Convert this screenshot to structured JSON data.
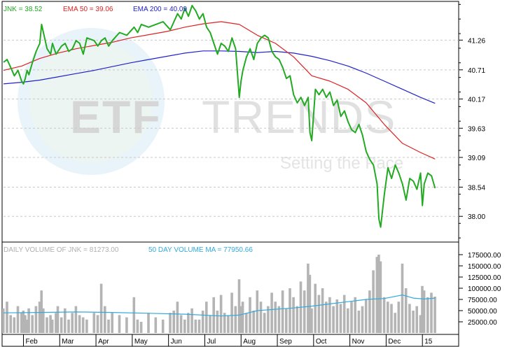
{
  "chart_data": [
    {
      "type": "line",
      "panel": "price",
      "legend": {
        "jnk": "JNK = 38.52",
        "ema50": "EMA 50 = 39.06",
        "ema200": "EMA 200 = 40.09"
      },
      "yticks": [
        "41.26",
        "40.71",
        "40.17",
        "39.63",
        "39.09",
        "38.54",
        "38.00"
      ],
      "ylim": [
        37.55,
        41.95
      ],
      "xlim": [
        0,
        12.55
      ],
      "grid": true,
      "colors": {
        "jnk": "#22aa22",
        "ema50": "#dd2222",
        "ema200": "#2222cc",
        "grid": "#c8c8c8"
      },
      "series": [
        {
          "name": "JNK = 38.52",
          "x": [
            0.0,
            0.1,
            0.2,
            0.3,
            0.4,
            0.5,
            0.55,
            0.6,
            0.65,
            0.7,
            0.8,
            0.9,
            1.0,
            1.05,
            1.1,
            1.2,
            1.3,
            1.35,
            1.45,
            1.5,
            1.6,
            1.7,
            1.8,
            1.9,
            2.0,
            2.1,
            2.2,
            2.3,
            2.5,
            2.6,
            2.7,
            2.8,
            2.9,
            3.0,
            3.2,
            3.4,
            3.6,
            3.7,
            3.8,
            4.0,
            4.2,
            4.4,
            4.6,
            4.7,
            4.8,
            4.9,
            5.0,
            5.1,
            5.2,
            5.3,
            5.4,
            5.5,
            5.6,
            5.7,
            5.8,
            5.9,
            6.0,
            6.1,
            6.2,
            6.3,
            6.4,
            6.5,
            6.55,
            6.6,
            6.7,
            6.8,
            6.9,
            7.0,
            7.1,
            7.2,
            7.3,
            7.4,
            7.5,
            7.6,
            7.7,
            7.8,
            7.9,
            8.0,
            8.1,
            8.2,
            8.3,
            8.4,
            8.45,
            8.5,
            8.6,
            8.7,
            8.8,
            8.9,
            9.0,
            9.1,
            9.2,
            9.3,
            9.4,
            9.5,
            9.6,
            9.7,
            9.8,
            9.9,
            10.0,
            10.1,
            10.2,
            10.3,
            10.35,
            10.4,
            10.5,
            10.6,
            10.7,
            10.8,
            10.9,
            11.0,
            11.1,
            11.2,
            11.3,
            11.4,
            11.5,
            11.55,
            11.6,
            11.7,
            11.8,
            11.9
          ],
          "values": [
            40.85,
            40.9,
            40.75,
            40.6,
            40.7,
            40.5,
            40.45,
            40.55,
            40.7,
            40.62,
            40.85,
            41.05,
            41.2,
            41.55,
            41.4,
            41.1,
            41.0,
            41.2,
            41.0,
            41.05,
            41.15,
            41.2,
            41.05,
            41.1,
            41.25,
            41.2,
            41.0,
            41.3,
            41.25,
            41.15,
            41.25,
            41.3,
            41.15,
            41.25,
            41.4,
            41.35,
            41.5,
            41.4,
            41.55,
            41.5,
            41.55,
            41.6,
            41.45,
            41.6,
            41.75,
            41.65,
            41.85,
            41.7,
            41.9,
            41.8,
            41.65,
            41.75,
            41.5,
            41.4,
            41.2,
            41.0,
            41.2,
            41.15,
            41.05,
            41.3,
            41.1,
            40.2,
            40.5,
            40.7,
            40.95,
            41.1,
            40.9,
            41.2,
            41.3,
            41.35,
            41.3,
            41.05,
            40.95,
            40.9,
            40.75,
            40.55,
            40.6,
            40.25,
            40.1,
            40.2,
            40.05,
            40.2,
            39.55,
            39.4,
            40.35,
            40.25,
            40.35,
            40.2,
            40.3,
            40.05,
            40.15,
            39.85,
            39.95,
            39.75,
            39.6,
            39.55,
            39.7,
            39.5,
            39.2,
            39.05,
            38.95,
            38.6,
            37.95,
            37.8,
            38.4,
            38.9,
            38.7,
            38.95,
            38.8,
            38.6,
            38.3,
            38.7,
            38.65,
            38.5,
            38.8,
            38.2,
            38.6,
            38.8,
            38.75,
            38.52
          ]
        },
        {
          "name": "EMA 50 = 39.06",
          "x": [
            0.0,
            0.5,
            1.0,
            1.5,
            2.0,
            2.5,
            3.0,
            3.5,
            4.0,
            4.5,
            5.0,
            5.5,
            6.0,
            6.5,
            7.0,
            7.5,
            8.0,
            8.5,
            9.0,
            9.5,
            10.0,
            10.5,
            11.0,
            11.5,
            11.9
          ],
          "values": [
            40.7,
            40.78,
            40.92,
            41.02,
            41.1,
            41.16,
            41.22,
            41.3,
            41.36,
            41.42,
            41.5,
            41.56,
            41.6,
            41.55,
            41.35,
            41.2,
            40.95,
            40.6,
            40.5,
            40.35,
            40.1,
            39.7,
            39.35,
            39.18,
            39.06
          ]
        },
        {
          "name": "EMA 200 = 40.09",
          "x": [
            0.0,
            0.5,
            1.0,
            1.5,
            2.0,
            2.5,
            3.0,
            3.5,
            4.0,
            4.5,
            5.0,
            5.5,
            6.0,
            6.5,
            7.0,
            7.5,
            8.0,
            8.5,
            9.0,
            9.5,
            10.0,
            10.5,
            11.0,
            11.5,
            11.9
          ],
          "values": [
            40.45,
            40.48,
            40.52,
            40.58,
            40.64,
            40.7,
            40.77,
            40.84,
            40.9,
            40.96,
            41.02,
            41.06,
            41.06,
            41.05,
            41.03,
            41.05,
            41.02,
            40.96,
            40.88,
            40.78,
            40.65,
            40.5,
            40.35,
            40.2,
            40.09
          ]
        }
      ]
    },
    {
      "type": "bar",
      "panel": "volume",
      "legend": {
        "volume": "DAILY VOLUME OF JNK = 81273.00",
        "ma": "50 DAY VOLUME MA = 77950.66"
      },
      "yticks": [
        "175000.00",
        "150000.00",
        "125000.00",
        "100000.00",
        "75000.00",
        "50000.00",
        "25000.00"
      ],
      "ylim": [
        0,
        200000
      ],
      "xlim": [
        0,
        12.55
      ],
      "colors": {
        "bar": "#b4b4b4",
        "ma": "#33aadd"
      },
      "x": [
        0.0,
        0.1,
        0.2,
        0.3,
        0.4,
        0.5,
        0.55,
        0.6,
        0.65,
        0.7,
        0.8,
        0.9,
        1.0,
        1.05,
        1.1,
        1.2,
        1.3,
        1.35,
        1.45,
        1.5,
        1.6,
        1.7,
        1.8,
        1.9,
        2.0,
        2.1,
        2.2,
        2.3,
        2.5,
        2.6,
        2.7,
        2.8,
        2.9,
        3.0,
        3.2,
        3.4,
        3.6,
        3.7,
        3.8,
        4.0,
        4.2,
        4.4,
        4.6,
        4.7,
        4.8,
        4.9,
        5.0,
        5.1,
        5.2,
        5.3,
        5.4,
        5.5,
        5.6,
        5.7,
        5.8,
        5.9,
        6.0,
        6.1,
        6.2,
        6.3,
        6.4,
        6.5,
        6.55,
        6.6,
        6.7,
        6.8,
        6.9,
        7.0,
        7.1,
        7.2,
        7.3,
        7.4,
        7.5,
        7.6,
        7.7,
        7.8,
        7.9,
        8.0,
        8.1,
        8.2,
        8.3,
        8.4,
        8.45,
        8.5,
        8.6,
        8.7,
        8.8,
        8.9,
        9.0,
        9.1,
        9.2,
        9.3,
        9.4,
        9.5,
        9.6,
        9.7,
        9.8,
        9.9,
        10.0,
        10.1,
        10.2,
        10.3,
        10.35,
        10.4,
        10.5,
        10.6,
        10.7,
        10.8,
        10.9,
        11.0,
        11.1,
        11.2,
        11.3,
        11.4,
        11.5,
        11.55,
        11.6,
        11.7,
        11.8,
        11.9
      ],
      "values": [
        55000,
        70000,
        40000,
        35000,
        60000,
        45000,
        50000,
        40000,
        30000,
        55000,
        40000,
        60000,
        70000,
        95000,
        55000,
        35000,
        40000,
        30000,
        45000,
        60000,
        35000,
        55000,
        30000,
        45000,
        60000,
        40000,
        35000,
        30000,
        45000,
        40000,
        110000,
        60000,
        30000,
        45000,
        40000,
        35000,
        80000,
        30000,
        25000,
        45000,
        35000,
        30000,
        45000,
        50000,
        70000,
        40000,
        30000,
        45000,
        55000,
        30000,
        30000,
        50000,
        70000,
        40000,
        80000,
        50000,
        85000,
        45000,
        40000,
        90000,
        60000,
        120000,
        60000,
        70000,
        45000,
        80000,
        50000,
        95000,
        70000,
        45000,
        60000,
        90000,
        70000,
        60000,
        95000,
        55000,
        100000,
        80000,
        60000,
        115000,
        95000,
        155000,
        130000,
        55000,
        110000,
        85000,
        100000,
        70000,
        80000,
        60000,
        75000,
        65000,
        85000,
        55000,
        70000,
        80000,
        50000,
        60000,
        75000,
        95000,
        140000,
        170000,
        175000,
        160000,
        80000,
        70000,
        65000,
        45000,
        70000,
        155000,
        100000,
        65000,
        50000,
        60000,
        40000,
        105000,
        95000,
        80000,
        90000,
        81273
      ],
      "ma_x": [
        0.0,
        1.0,
        2.0,
        3.0,
        4.0,
        5.0,
        6.0,
        6.5,
        7.0,
        8.0,
        8.5,
        9.0,
        9.5,
        10.0,
        10.5,
        11.0,
        11.3,
        11.6,
        11.9
      ],
      "ma": [
        45000,
        46000,
        47000,
        46000,
        44000,
        42000,
        38000,
        40000,
        50000,
        56000,
        60000,
        65000,
        70000,
        75000,
        77000,
        85000,
        78000,
        76000,
        77950
      ]
    }
  ],
  "months": [
    "Feb",
    "Mar",
    "Apr",
    "May",
    "Jun",
    "Jul",
    "Aug",
    "Sep",
    "Oct",
    "Nov",
    "Dec",
    "15"
  ],
  "watermark": {
    "brand_bold": "ETF",
    "brand_light": "TRENDS",
    "tagline": "Setting the Pace"
  }
}
